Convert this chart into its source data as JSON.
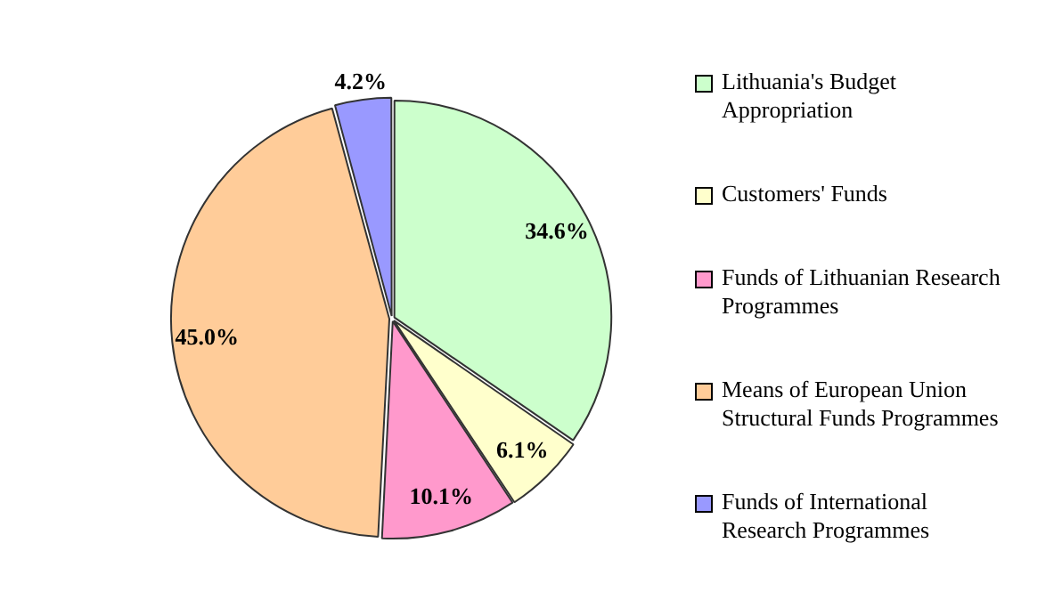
{
  "chart_data": {
    "type": "pie",
    "categories": [
      "Lithuania's Budget Appropriation",
      "Customers' Funds",
      "Funds of Lithuanian Research Programmes",
      "Means of European Union Structural Funds Programmes",
      "Funds of International Research Programmes"
    ],
    "values": [
      34.6,
      6.1,
      10.1,
      45.0,
      4.2
    ],
    "value_labels": [
      "34.6%",
      "6.1%",
      "10.1%",
      "45.0%",
      "4.2%"
    ],
    "colors": [
      "#ccffcc",
      "#ffffcc",
      "#ff99cc",
      "#ffcc99",
      "#9999ff"
    ],
    "legend": "right"
  }
}
